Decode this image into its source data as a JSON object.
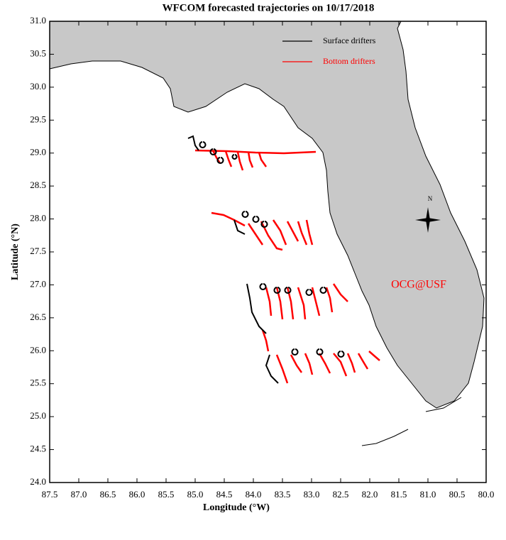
{
  "chart_data": {
    "type": "map",
    "title": "WFCOM forecasted trajectories on 10/17/2018",
    "xlabel": "Longitude (°W)",
    "ylabel": "Latitude (°N)",
    "xlim": [
      87.5,
      80.0
    ],
    "ylim": [
      24.0,
      31.0
    ],
    "xticks": [
      87.5,
      {
        "value": 87,
        "label": "87.0"
      },
      86.5,
      {
        "value": 86,
        "label": "86.0"
      },
      85.5,
      {
        "value": 85,
        "label": "85.0"
      },
      84.5,
      {
        "value": 84,
        "label": "84.0"
      },
      83.5,
      {
        "value": 83,
        "label": "83.0"
      },
      82.5,
      {
        "value": 82,
        "label": "82.0"
      },
      81.5,
      {
        "value": 81,
        "label": "81.0"
      },
      80.5,
      {
        "value": 80,
        "label": "80.0"
      }
    ],
    "yticks": [
      {
        "value": 24,
        "label": "24.0"
      },
      24.5,
      {
        "value": 25,
        "label": "25.0"
      },
      25.5,
      {
        "value": 26,
        "label": "26.0"
      },
      26.5,
      {
        "value": 27,
        "label": "27.0"
      },
      27.5,
      {
        "value": 28,
        "label": "28.0"
      },
      28.5,
      {
        "value": 29,
        "label": "29.0"
      },
      29.5,
      {
        "value": 30,
        "label": "30.0"
      },
      30.5,
      {
        "value": 31,
        "label": "31.0"
      }
    ],
    "legend": [
      {
        "name": "Surface drifters",
        "color": "#000000"
      },
      {
        "name": "Bottom drifters",
        "color": "#ff0000"
      }
    ],
    "annotation": "OCG@USF",
    "compass": "N"
  }
}
